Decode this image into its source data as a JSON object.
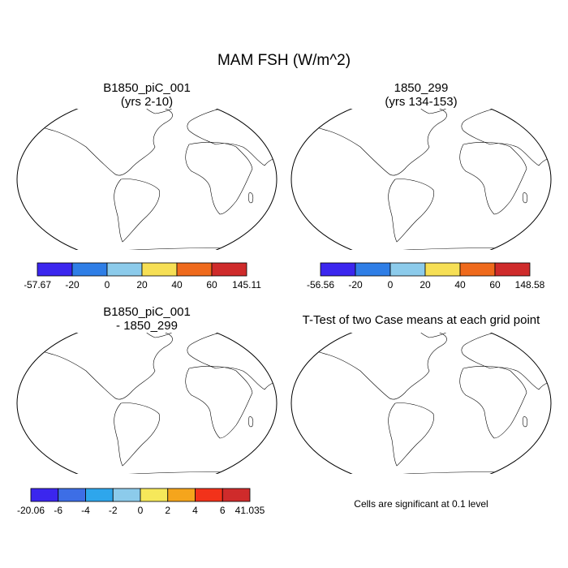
{
  "figure": {
    "title": "MAM FSH (W/m^2)",
    "ocean_color": "#ffffff",
    "coast_color": "#000000"
  },
  "panels": [
    {
      "id": "p1",
      "title_line1": "B1850_piC_001",
      "title_line2": "(yrs 2-10)",
      "land_colors": [
        "#3b26ee",
        "#2f7ee6",
        "#8ccbeb",
        "#f6df55",
        "#ef6a1c",
        "#cf2b2b"
      ],
      "colorbar": {
        "colors": [
          "#3b26ee",
          "#2f7ee6",
          "#8ccbeb",
          "#f6df55",
          "#ef6a1c",
          "#cf2b2b"
        ],
        "labels": [
          "-57.67",
          "-20",
          "0",
          "20",
          "40",
          "60",
          "145.11"
        ]
      }
    },
    {
      "id": "p2",
      "title_line1": "1850_299",
      "title_line2": "(yrs 134-153)",
      "land_colors": [
        "#3b26ee",
        "#2f7ee6",
        "#8ccbeb",
        "#f6df55",
        "#ef6a1c",
        "#cf2b2b"
      ],
      "colorbar": {
        "colors": [
          "#3b26ee",
          "#2f7ee6",
          "#8ccbeb",
          "#f6df55",
          "#ef6a1c",
          "#cf2b2b"
        ],
        "labels": [
          "-56.56",
          "-20",
          "0",
          "20",
          "40",
          "60",
          "148.58"
        ]
      }
    },
    {
      "id": "p3",
      "title_line1": "B1850_piC_001",
      "title_line2": "- 1850_299",
      "land_colors": [
        "#3b26ee",
        "#3d6ee6",
        "#2ea6ec",
        "#8ccbeb",
        "#f6e85a",
        "#f5a51c",
        "#f2321a",
        "#cf2b2b"
      ],
      "colorbar": {
        "colors": [
          "#3b26ee",
          "#3d6ee6",
          "#2ea6ec",
          "#8ccbeb",
          "#f6e85a",
          "#f5a51c",
          "#f2321a",
          "#cf2b2b"
        ],
        "labels": [
          "-20.06",
          "-6",
          "-4",
          "-2",
          "0",
          "2",
          "4",
          "6",
          "41.035"
        ]
      }
    },
    {
      "id": "p4",
      "title_line1": "T-Test of two Case means at each grid point",
      "significance_color": "#ee0000",
      "note": "Cells are significant at 0.1 level"
    }
  ]
}
